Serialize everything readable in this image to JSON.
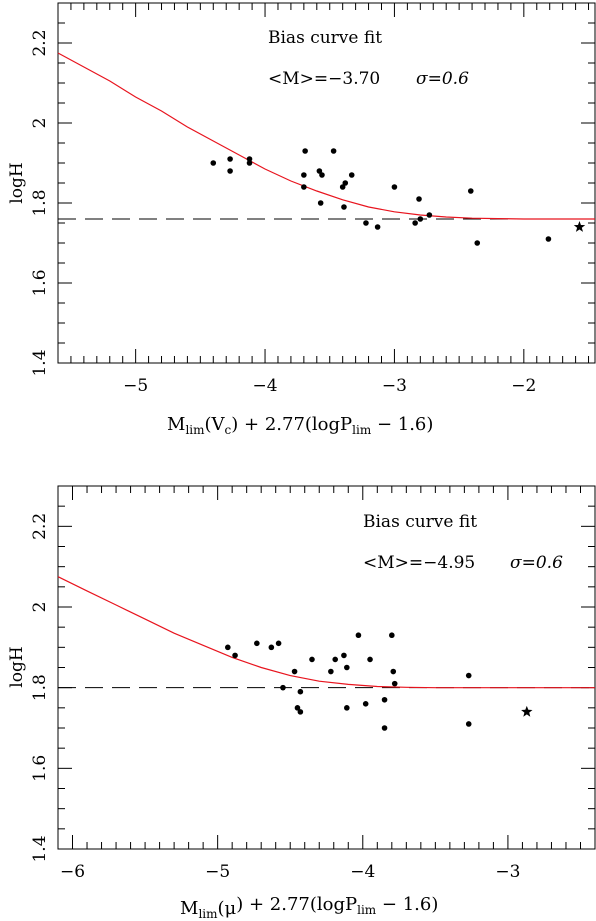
{
  "chart_data": [
    {
      "type": "scatter",
      "title": "Bias curve fit",
      "annotation": {
        "mean_label": "<M>=−3.70",
        "sigma_label": "σ=0.6"
      },
      "xlabel": {
        "m": "M",
        "m_sub": "lim",
        "arg_open": "(V",
        "arg_sub": "c",
        "arg_close": ")",
        "rest": " + 2.77(logP",
        "rest_sub": "lim",
        "tail": " − 1.6)"
      },
      "ylabel": "logH",
      "xlim": [
        -5.6,
        -1.45
      ],
      "ylim": [
        1.4,
        2.3
      ],
      "xticks": [
        -5,
        -4,
        -3,
        -2
      ],
      "xtick_labels": [
        "−5",
        "−4",
        "−3",
        "−2"
      ],
      "yticks": [
        1.4,
        1.6,
        1.8,
        2.0,
        2.2
      ],
      "ytick_labels": [
        "1.4",
        "1.6",
        "1.8",
        "2",
        "2.2"
      ],
      "dashed_level": 1.76,
      "fit_curve": {
        "color": "#e8141e",
        "x": [
          -5.6,
          -5.4,
          -5.2,
          -5.0,
          -4.8,
          -4.6,
          -4.4,
          -4.2,
          -4.0,
          -3.8,
          -3.6,
          -3.4,
          -3.2,
          -3.0,
          -2.8,
          -2.6,
          -2.4,
          -2.2,
          -2.0,
          -1.8,
          -1.6,
          -1.45
        ],
        "y": [
          2.175,
          2.14,
          2.105,
          2.065,
          2.03,
          1.99,
          1.955,
          1.92,
          1.885,
          1.855,
          1.83,
          1.808,
          1.79,
          1.778,
          1.77,
          1.765,
          1.762,
          1.761,
          1.76,
          1.76,
          1.76,
          1.76
        ]
      },
      "points": {
        "x": [
          -4.4,
          -4.27,
          -4.27,
          -4.12,
          -4.12,
          -3.69,
          -3.7,
          -3.7,
          -3.58,
          -3.56,
          -3.57,
          -3.47,
          -3.4,
          -3.38,
          -3.33,
          -3.39,
          -3.22,
          -3.13,
          -3.0,
          -2.84,
          -2.81,
          -2.8,
          -2.73,
          -2.41,
          -2.36,
          -1.81
        ],
        "y": [
          1.9,
          1.91,
          1.88,
          1.91,
          1.9,
          1.93,
          1.87,
          1.84,
          1.88,
          1.87,
          1.8,
          1.93,
          1.84,
          1.85,
          1.87,
          1.79,
          1.75,
          1.74,
          1.84,
          1.75,
          1.81,
          1.76,
          1.77,
          1.83,
          1.7,
          1.71
        ]
      },
      "star": {
        "x": -1.57,
        "y": 1.74
      }
    },
    {
      "type": "scatter",
      "title": "Bias curve fit",
      "annotation": {
        "mean_label": "<M>=−4.95",
        "sigma_label": "σ=0.6"
      },
      "xlabel": {
        "m": "M",
        "m_sub": "lim",
        "arg_open": "(μ",
        "arg_sub": "",
        "arg_close": ")",
        "rest": " + 2.77(logP",
        "rest_sub": "lim",
        "tail": " − 1.6)"
      },
      "ylabel": "logH",
      "xlim": [
        -6.1,
        -2.4
      ],
      "ylim": [
        1.4,
        2.3
      ],
      "xticks": [
        -6,
        -5,
        -4,
        -3
      ],
      "xtick_labels": [
        "−6",
        "−5",
        "−4",
        "−3"
      ],
      "yticks": [
        1.4,
        1.6,
        1.8,
        2.0,
        2.2
      ],
      "ytick_labels": [
        "1.4",
        "1.6",
        "1.8",
        "2",
        "2.2"
      ],
      "dashed_level": 1.8,
      "fit_curve": {
        "color": "#e8141e",
        "x": [
          -6.1,
          -5.9,
          -5.7,
          -5.5,
          -5.3,
          -5.1,
          -4.9,
          -4.7,
          -4.5,
          -4.3,
          -4.1,
          -3.9,
          -3.7,
          -3.5,
          -3.3,
          -3.1,
          -2.9,
          -2.7,
          -2.5,
          -2.4
        ],
        "y": [
          2.075,
          2.04,
          2.005,
          1.97,
          1.935,
          1.905,
          1.875,
          1.85,
          1.83,
          1.816,
          1.808,
          1.803,
          1.801,
          1.8,
          1.8,
          1.8,
          1.8,
          1.8,
          1.8,
          1.8
        ]
      },
      "points": {
        "x": [
          -4.93,
          -4.88,
          -4.73,
          -4.63,
          -4.58,
          -4.47,
          -4.55,
          -4.45,
          -4.43,
          -4.43,
          -4.35,
          -4.22,
          -4.19,
          -4.13,
          -4.11,
          -4.11,
          -4.03,
          -3.98,
          -3.95,
          -3.85,
          -3.85,
          -3.8,
          -3.79,
          -3.78,
          -3.27,
          -3.27
        ],
        "y": [
          1.9,
          1.88,
          1.91,
          1.9,
          1.91,
          1.84,
          1.8,
          1.75,
          1.74,
          1.79,
          1.87,
          1.84,
          1.87,
          1.88,
          1.85,
          1.75,
          1.93,
          1.76,
          1.87,
          1.77,
          1.7,
          1.93,
          1.84,
          1.81,
          1.83,
          1.71
        ]
      },
      "star": {
        "x": -2.87,
        "y": 1.74
      }
    }
  ]
}
